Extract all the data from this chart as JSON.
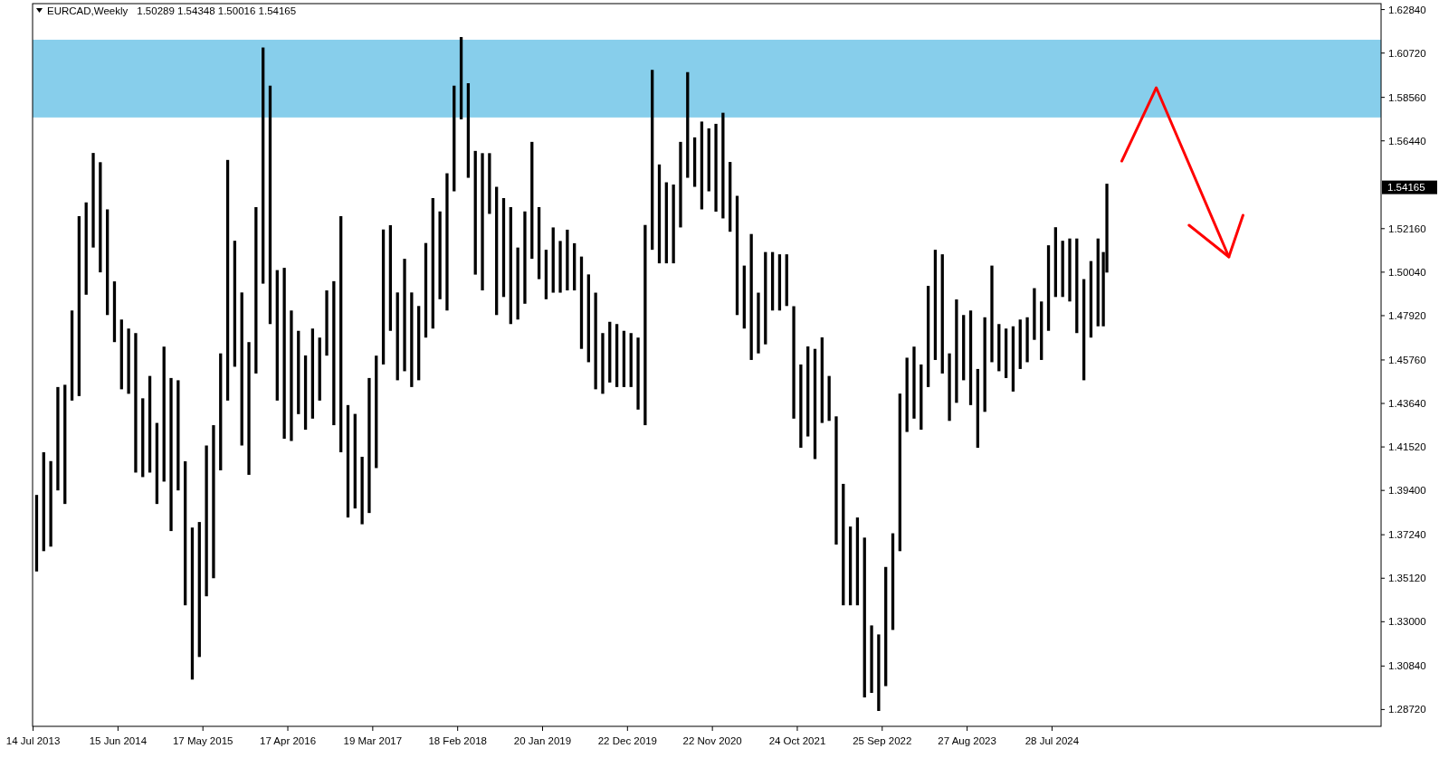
{
  "chart_data": {
    "type": "bar",
    "title": "EURCAD,Weekly",
    "subtitle": "1.50289 1.54348 1.50016 1.54165",
    "color": "#000000",
    "x": [
      "2013-07-28",
      "2013-08-25",
      "2013-09-22",
      "2013-10-20",
      "2013-11-17",
      "2013-12-15",
      "2014-01-12",
      "2014-02-09",
      "2014-03-09",
      "2014-04-06",
      "2014-05-04",
      "2014-06-01",
      "2014-06-29",
      "2014-07-27",
      "2014-08-24",
      "2014-09-21",
      "2014-10-19",
      "2014-11-16",
      "2014-12-14",
      "2015-01-11",
      "2015-02-08",
      "2015-03-08",
      "2015-04-05",
      "2015-05-03",
      "2015-05-31",
      "2015-06-28",
      "2015-07-26",
      "2015-08-23",
      "2015-09-20",
      "2015-10-18",
      "2015-11-15",
      "2015-12-13",
      "2016-01-10",
      "2016-02-07",
      "2016-03-06",
      "2016-04-03",
      "2016-05-01",
      "2016-05-29",
      "2016-06-26",
      "2016-07-24",
      "2016-08-21",
      "2016-09-18",
      "2016-10-16",
      "2016-11-13",
      "2016-12-11",
      "2017-01-08",
      "2017-02-05",
      "2017-03-05",
      "2017-04-02",
      "2017-04-30",
      "2017-05-28",
      "2017-06-25",
      "2017-07-23",
      "2017-08-20",
      "2017-09-17",
      "2017-10-15",
      "2017-11-12",
      "2017-12-10",
      "2018-01-07",
      "2018-02-04",
      "2018-03-04",
      "2018-04-01",
      "2018-04-29",
      "2018-05-27",
      "2018-06-24",
      "2018-07-22",
      "2018-08-19",
      "2018-09-16",
      "2018-10-14",
      "2018-11-11",
      "2018-12-09",
      "2019-01-06",
      "2019-02-03",
      "2019-03-03",
      "2019-03-31",
      "2019-04-28",
      "2019-05-26",
      "2019-06-23",
      "2019-07-21",
      "2019-08-18",
      "2019-09-15",
      "2019-10-13",
      "2019-11-10",
      "2019-12-08",
      "2020-01-05",
      "2020-02-02",
      "2020-03-01",
      "2020-03-29",
      "2020-04-26",
      "2020-05-24",
      "2020-06-21",
      "2020-07-19",
      "2020-08-16",
      "2020-09-13",
      "2020-10-11",
      "2020-11-08",
      "2020-12-06",
      "2021-01-03",
      "2021-01-31",
      "2021-02-28",
      "2021-03-28",
      "2021-04-25",
      "2021-05-23",
      "2021-06-20",
      "2021-07-18",
      "2021-08-15",
      "2021-09-12",
      "2021-10-10",
      "2021-11-07",
      "2021-12-05",
      "2022-01-02",
      "2022-01-30",
      "2022-02-27",
      "2022-03-27",
      "2022-04-24",
      "2022-05-22",
      "2022-06-19",
      "2022-07-17",
      "2022-08-14",
      "2022-09-11",
      "2022-10-09",
      "2022-11-06",
      "2022-12-04",
      "2023-01-01",
      "2023-01-29",
      "2023-02-26",
      "2023-03-26",
      "2023-04-23",
      "2023-05-21",
      "2023-06-18",
      "2023-07-16",
      "2023-08-13",
      "2023-09-10",
      "2023-10-08",
      "2023-11-05",
      "2023-12-03",
      "2023-12-31",
      "2024-01-28",
      "2024-02-25",
      "2024-03-24",
      "2024-04-21",
      "2024-05-19",
      "2024-06-16",
      "2024-07-14",
      "2024-08-11",
      "2024-09-08",
      "2024-10-06",
      "2024-11-03",
      "2024-12-01",
      "2024-12-29",
      "2025-01-26",
      "2025-02-16",
      "2025-03-02"
    ],
    "base": [
      1.3545,
      1.3644,
      1.3666,
      1.394,
      1.3874,
      1.4378,
      1.44,
      1.4894,
      1.5124,
      1.5003,
      1.4795,
      1.4663,
      1.4433,
      1.4411,
      1.4027,
      1.4005,
      1.4027,
      1.3874,
      1.3983,
      1.3742,
      1.394,
      1.338,
      1.3018,
      1.3128,
      1.3424,
      1.3512,
      1.4038,
      1.4378,
      1.4543,
      1.4159,
      1.4016,
      1.451,
      1.4948,
      1.4751,
      1.4378,
      1.4192,
      1.4181,
      1.4312,
      1.4236,
      1.429,
      1.4378,
      1.4597,
      1.4258,
      1.4126,
      1.3808,
      1.3852,
      1.3775,
      1.383,
      1.4049,
      1.4554,
      1.4718,
      1.4477,
      1.4521,
      1.4444,
      1.4477,
      1.4685,
      1.4729,
      1.4872,
      1.4817,
      1.5398,
      1.5749,
      1.5464,
      1.4992,
      1.4915,
      1.5288,
      1.4795,
      1.4883,
      1.4751,
      1.4773,
      1.485,
      1.5069,
      1.497,
      1.4872,
      1.4904,
      1.4904,
      1.4915,
      1.4915,
      1.463,
      1.4565,
      1.4433,
      1.4411,
      1.4466,
      1.4444,
      1.4444,
      1.4444,
      1.4334,
      1.4258,
      1.5113,
      1.5047,
      1.5047,
      1.5047,
      1.5222,
      1.5464,
      1.542,
      1.531,
      1.5398,
      1.5299,
      1.5266,
      1.5201,
      1.4795,
      1.4729,
      1.4576,
      1.4608,
      1.4652,
      1.4817,
      1.4817,
      1.4839,
      1.429,
      1.4148,
      1.4203,
      1.4093,
      1.4269,
      1.4279,
      1.3676,
      1.338,
      1.338,
      1.338,
      1.2931,
      1.2953,
      1.2865,
      1.2986,
      1.326,
      1.3644,
      1.4225,
      1.429,
      1.4236,
      1.4444,
      1.4576,
      1.451,
      1.4279,
      1.4367,
      1.4477,
      1.4356,
      1.4148,
      1.4323,
      1.4565,
      1.4521,
      1.4488,
      1.4422,
      1.4532,
      1.4565,
      1.4674,
      1.4576,
      1.4718,
      1.4883,
      1.4883,
      1.4861,
      1.4707,
      1.4477,
      1.4685,
      1.474,
      1.474,
      1.5002
    ],
    "values": [
      0.0373,
      0.0482,
      0.0417,
      0.0504,
      0.0581,
      0.0439,
      0.0877,
      0.045,
      0.0461,
      0.0537,
      0.0515,
      0.0296,
      0.034,
      0.0318,
      0.068,
      0.0384,
      0.0471,
      0.0395,
      0.0658,
      0.0746,
      0.0537,
      0.0702,
      0.0741,
      0.0658,
      0.0735,
      0.0746,
      0.057,
      0.1173,
      0.0614,
      0.0746,
      0.0647,
      0.0811,
      0.1151,
      0.1162,
      0.0636,
      0.0833,
      0.0636,
      0.0406,
      0.0362,
      0.0439,
      0.0307,
      0.0318,
      0.0702,
      0.1151,
      0.0548,
      0.0461,
      0.0329,
      0.0658,
      0.0548,
      0.0658,
      0.0515,
      0.0428,
      0.0548,
      0.0461,
      0.0362,
      0.0461,
      0.0636,
      0.0428,
      0.0669,
      0.0515,
      0.0401,
      0.0461,
      0.0603,
      0.0669,
      0.0296,
      0.0625,
      0.0482,
      0.057,
      0.0351,
      0.045,
      0.057,
      0.0351,
      0.0241,
      0.0318,
      0.0252,
      0.0296,
      0.023,
      0.045,
      0.0428,
      0.0471,
      0.0296,
      0.0296,
      0.0307,
      0.0274,
      0.0263,
      0.0351,
      0.0976,
      0.0877,
      0.0482,
      0.0395,
      0.0384,
      0.0417,
      0.0515,
      0.0241,
      0.0428,
      0.0307,
      0.0428,
      0.0515,
      0.034,
      0.0581,
      0.0307,
      0.0614,
      0.0296,
      0.045,
      0.0285,
      0.0274,
      0.0252,
      0.0548,
      0.0406,
      0.0439,
      0.0537,
      0.0417,
      0.0219,
      0.0625,
      0.0592,
      0.0384,
      0.0428,
      0.0779,
      0.0329,
      0.0373,
      0.0581,
      0.0471,
      0.0768,
      0.0362,
      0.0351,
      0.0318,
      0.0493,
      0.0537,
      0.0581,
      0.0329,
      0.0504,
      0.0318,
      0.0461,
      0.0384,
      0.0461,
      0.0471,
      0.023,
      0.0241,
      0.0318,
      0.0241,
      0.0219,
      0.0252,
      0.0285,
      0.0417,
      0.034,
      0.0274,
      0.0307,
      0.0461,
      0.0493,
      0.0373,
      0.0428,
      0.0362,
      0.0433
    ],
    "xlim": [
      "2013-07-12",
      "2028-02-20"
    ],
    "xticks": [
      {
        "value": "2013-07-14",
        "label": "14 Jul 2013"
      },
      {
        "value": "2014-06-15",
        "label": "15 Jun 2014"
      },
      {
        "value": "2015-05-17",
        "label": "17 May 2015"
      },
      {
        "value": "2016-04-17",
        "label": "17 Apr 2016"
      },
      {
        "value": "2017-03-19",
        "label": "19 Mar 2017"
      },
      {
        "value": "2018-02-18",
        "label": "18 Feb 2018"
      },
      {
        "value": "2019-01-20",
        "label": "20 Jan 2019"
      },
      {
        "value": "2019-12-22",
        "label": "22 Dec 2019"
      },
      {
        "value": "2020-11-22",
        "label": "22 Nov 2020"
      },
      {
        "value": "2021-10-24",
        "label": "24 Oct 2021"
      },
      {
        "value": "2022-09-25",
        "label": "25 Sep 2022"
      },
      {
        "value": "2023-08-27",
        "label": "27 Aug 2023"
      },
      {
        "value": "2024-07-28",
        "label": "28 Jul 2024"
      }
    ],
    "ylim": [
      1.279,
      1.6313
    ],
    "yticks": [
      {
        "value": 1.2872,
        "label": "1.28720"
      },
      {
        "value": 1.3084,
        "label": "1.30840"
      },
      {
        "value": 1.33,
        "label": "1.33000"
      },
      {
        "value": 1.3512,
        "label": "1.35120"
      },
      {
        "value": 1.3724,
        "label": "1.37240"
      },
      {
        "value": 1.394,
        "label": "1.39400"
      },
      {
        "value": 1.4152,
        "label": "1.41520"
      },
      {
        "value": 1.4364,
        "label": "1.43640"
      },
      {
        "value": 1.4576,
        "label": "1.45760"
      },
      {
        "value": 1.4792,
        "label": "1.47920"
      },
      {
        "value": 1.5004,
        "label": "1.50040"
      },
      {
        "value": 1.5216,
        "label": "1.52160"
      },
      {
        "value": 1.5644,
        "label": "1.56440"
      },
      {
        "value": 1.5856,
        "label": "1.58560"
      },
      {
        "value": 1.6072,
        "label": "1.60720"
      },
      {
        "value": 1.6284,
        "label": "1.62840"
      }
    ],
    "bands": [
      {
        "axis": "y",
        "from": 1.5758,
        "to": 1.6137,
        "color": "#87ceeb"
      }
    ],
    "annotations": [
      "1.54165"
    ]
  }
}
